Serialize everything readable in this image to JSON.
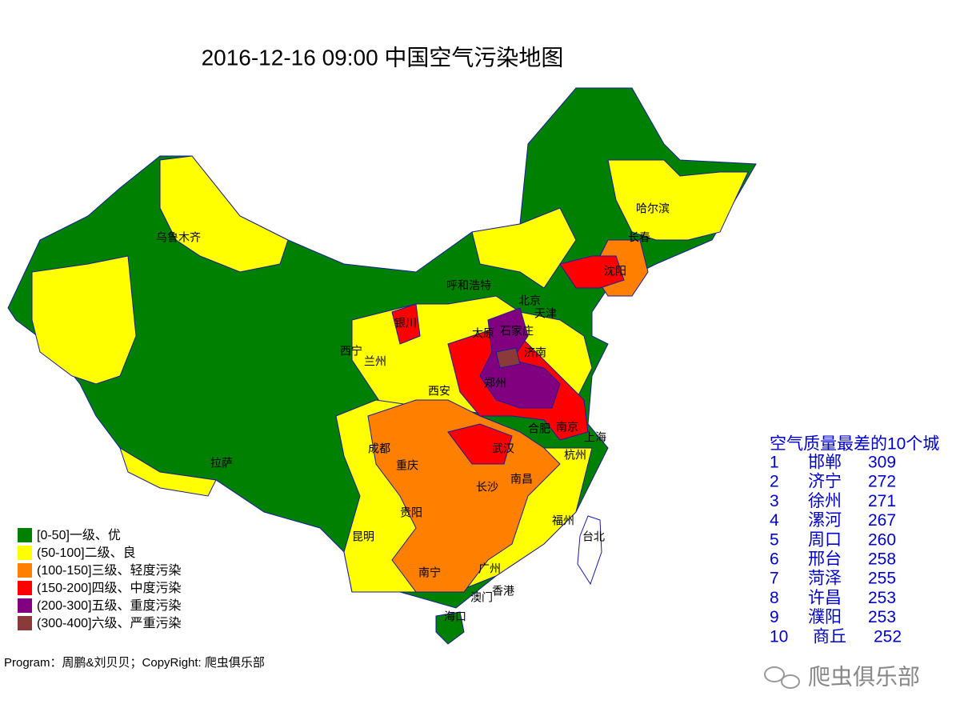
{
  "title": "2016-12-16 09:00 中国空气污染地图",
  "legend": [
    {
      "label": "[0-50]一级、优",
      "color": "#008000"
    },
    {
      "label": "(50-100]二级、良",
      "color": "#ffff00"
    },
    {
      "label": "(100-150]三级、轻度污染",
      "color": "#ff8000"
    },
    {
      "label": "(150-200]四级、中度污染",
      "color": "#ff0000"
    },
    {
      "label": "(200-300]五级、重度污染",
      "color": "#800080"
    },
    {
      "label": "(300-400]六级、严重污染",
      "color": "#8b3a3a"
    }
  ],
  "cities": [
    "乌鲁木齐",
    "呼和浩特",
    "银川",
    "北京",
    "天津",
    "太原",
    "石家庄",
    "西宁",
    "兰州",
    "济南",
    "西安",
    "郑州",
    "哈尔滨",
    "长春",
    "沈阳",
    "合肥",
    "南京",
    "上海",
    "成都",
    "武汉",
    "杭州",
    "拉萨",
    "重庆",
    "南昌",
    "长沙",
    "贵阳",
    "福州",
    "台北",
    "昆明",
    "南宁",
    "广州",
    "澳门",
    "香港",
    "海口"
  ],
  "ranking": {
    "heading": "空气质量最差的10个城",
    "rows": [
      {
        "rank": 1,
        "city": "邯郸",
        "aqi": 309
      },
      {
        "rank": 2,
        "city": "济宁",
        "aqi": 272
      },
      {
        "rank": 3,
        "city": "徐州",
        "aqi": 271
      },
      {
        "rank": 4,
        "city": "漯河",
        "aqi": 267
      },
      {
        "rank": 5,
        "city": "周口",
        "aqi": 260
      },
      {
        "rank": 6,
        "city": "邢台",
        "aqi": 258
      },
      {
        "rank": 7,
        "city": "菏泽",
        "aqi": 255
      },
      {
        "rank": 8,
        "city": "许昌",
        "aqi": 253
      },
      {
        "rank": 9,
        "city": "濮阳",
        "aqi": 253
      },
      {
        "rank": 10,
        "city": "商丘",
        "aqi": 252
      }
    ]
  },
  "footer": "Program：周鹏&刘贝贝；CopyRight: 爬虫俱乐部",
  "watermark": "爬虫俱乐部"
}
